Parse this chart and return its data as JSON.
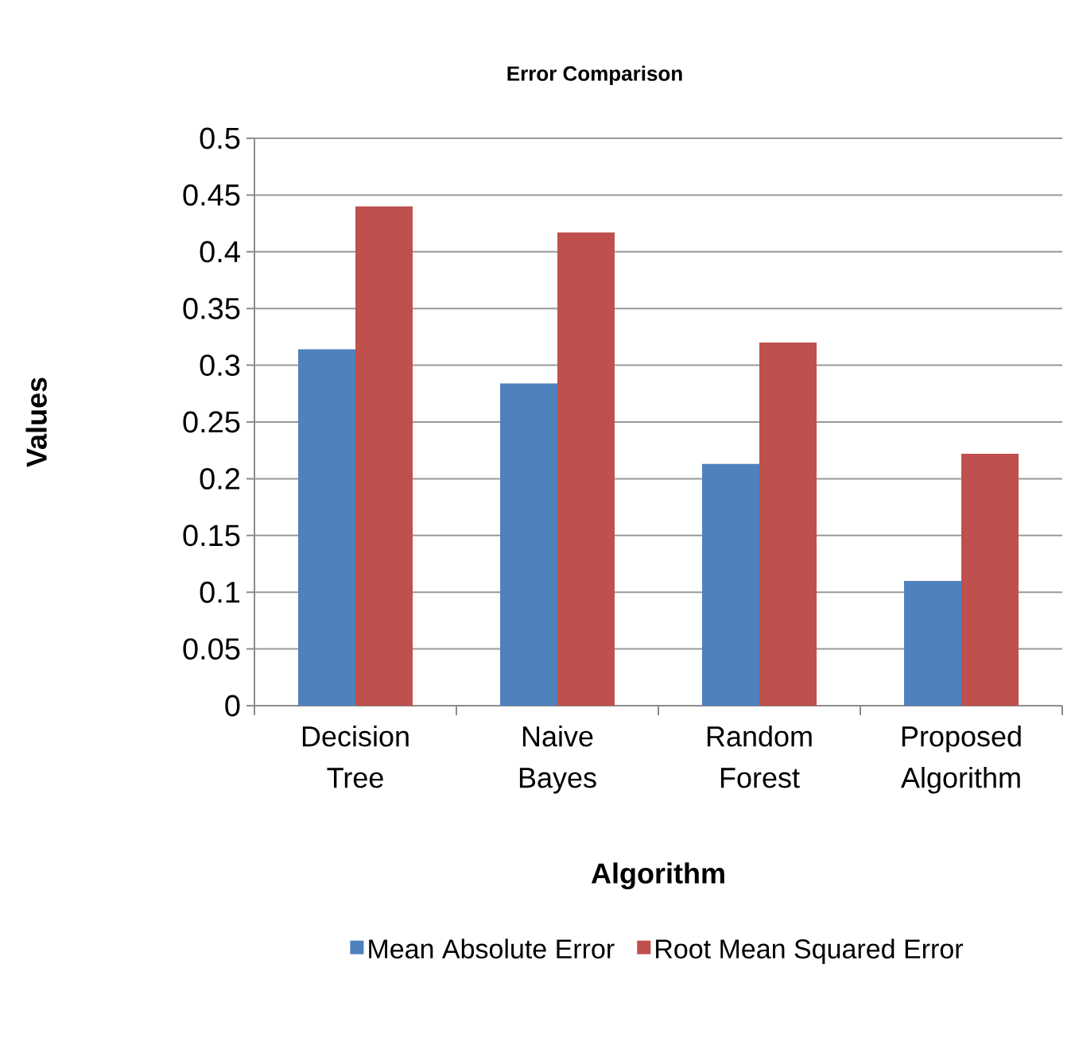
{
  "chart_data": {
    "type": "bar",
    "title": "Error Comparison",
    "xlabel": "Algorithm",
    "ylabel": "Values",
    "categories": [
      "Decision Tree",
      "Naive Bayes",
      "Random Forest",
      "Proposed Algorithm"
    ],
    "series": [
      {
        "name": "Mean Absolute Error",
        "color": "#4f81bd",
        "values": [
          0.314,
          0.284,
          0.213,
          0.11
        ]
      },
      {
        "name": "Root Mean Squared Error",
        "color": "#c0504d",
        "values": [
          0.44,
          0.417,
          0.32,
          0.222
        ]
      }
    ],
    "ylim": [
      0,
      0.5
    ],
    "yticks": [
      0,
      0.05,
      0.1,
      0.15,
      0.2,
      0.25,
      0.3,
      0.35,
      0.4,
      0.45,
      0.5
    ],
    "grid": "y",
    "legend": "bottom"
  }
}
